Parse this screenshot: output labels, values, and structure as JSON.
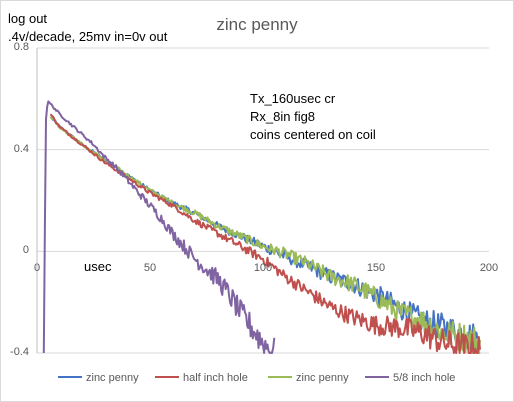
{
  "chart_data": {
    "type": "line",
    "title": "zinc penny",
    "ylabel_lines": [
      "log out",
      ".4v/decade, 25mv in=0v out"
    ],
    "xlabel": "usec",
    "annotations": [
      "Tx_160usec cr",
      "Rx_8in fig8",
      "coins centered on coil"
    ],
    "xlim": [
      0,
      200
    ],
    "ylim": [
      -0.4,
      0.8
    ],
    "x_ticks": [
      0,
      50,
      100,
      150,
      200
    ],
    "x_tick_labels": [
      "0",
      "50",
      "100",
      "150",
      "200"
    ],
    "y_ticks": [
      0.8,
      0.4,
      0,
      -0.4
    ],
    "y_tick_labels": [
      "0.8",
      "0.4",
      "0",
      "-0.4"
    ],
    "grid": "horizontal",
    "legend_position": "bottom",
    "series": [
      {
        "name": "zinc penny",
        "color": "#4472c4",
        "x": [
          6,
          10,
          20,
          30,
          40,
          50,
          60,
          70,
          80,
          90,
          100,
          110,
          120,
          130,
          140,
          150,
          160,
          170,
          180,
          190,
          196
        ],
        "y": [
          0.53,
          0.49,
          0.42,
          0.36,
          0.3,
          0.24,
          0.19,
          0.15,
          0.1,
          0.06,
          0.02,
          -0.02,
          -0.06,
          -0.1,
          -0.13,
          -0.17,
          -0.22,
          -0.27,
          -0.3,
          -0.33,
          -0.35
        ]
      },
      {
        "name": "half inch hole",
        "color": "#c0504d",
        "x": [
          6,
          10,
          20,
          30,
          40,
          50,
          60,
          70,
          80,
          90,
          100,
          110,
          120,
          130,
          140,
          150,
          160,
          170,
          180,
          190,
          196
        ],
        "y": [
          0.54,
          0.49,
          0.42,
          0.35,
          0.29,
          0.23,
          0.18,
          0.12,
          0.07,
          0.02,
          -0.03,
          -0.1,
          -0.16,
          -0.22,
          -0.26,
          -0.29,
          -0.3,
          -0.32,
          -0.36,
          -0.38,
          -0.39
        ]
      },
      {
        "name": "zinc penny",
        "color": "#9bbb59",
        "x": [
          6,
          10,
          20,
          30,
          40,
          50,
          60,
          70,
          80,
          90,
          100,
          110,
          120,
          130,
          140,
          150,
          160,
          170,
          180,
          190,
          196
        ],
        "y": [
          0.53,
          0.49,
          0.42,
          0.36,
          0.3,
          0.24,
          0.19,
          0.15,
          0.1,
          0.06,
          0.02,
          -0.01,
          -0.05,
          -0.1,
          -0.13,
          -0.18,
          -0.24,
          -0.27,
          -0.32,
          -0.34,
          -0.36
        ]
      },
      {
        "name": "5/8 inch hole",
        "color": "#8064a2",
        "x": [
          3,
          3.5,
          4,
          4.5,
          5,
          6,
          8,
          10,
          15,
          20,
          25,
          30,
          35,
          40,
          45,
          50,
          55,
          60,
          65,
          70,
          75,
          80,
          85,
          90,
          95,
          100,
          105
        ],
        "y": [
          -0.4,
          0.1,
          0.52,
          0.57,
          0.59,
          0.58,
          0.56,
          0.54,
          0.5,
          0.46,
          0.42,
          0.37,
          0.33,
          0.28,
          0.23,
          0.18,
          0.13,
          0.07,
          0.02,
          -0.03,
          -0.07,
          -0.11,
          -0.17,
          -0.24,
          -0.3,
          -0.36,
          -0.4
        ]
      }
    ]
  }
}
